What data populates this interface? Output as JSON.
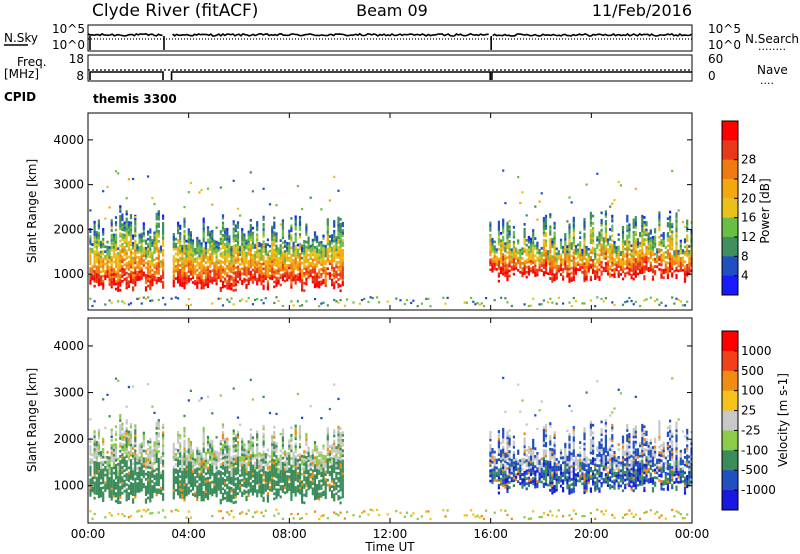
{
  "header": {
    "station": "Clyde River (fitACF)",
    "beam": "Beam 09",
    "date": "11/Feb/2016"
  },
  "strip_panels": {
    "sky": {
      "left_label": "N.Sky",
      "left_ticks": [
        "10^5",
        "10^0"
      ],
      "right_ticks": [
        "10^5",
        "10^0"
      ],
      "right_label": "N.Search",
      "legend_mark": "........"
    },
    "freq": {
      "left_label_1": "Freq.",
      "left_label_2": "[MHz]",
      "left_ticks": [
        "18",
        "8"
      ],
      "right_ticks": [
        "60",
        "0"
      ],
      "right_label": "Nave",
      "legend_mark": "....",
      "cpid_label": "CPID",
      "cpid_value": "themis 3300"
    }
  },
  "colors": {
    "power": [
      "#1a1aff",
      "#1f4fc2",
      "#3f8f5f",
      "#6abe45",
      "#e8c21a",
      "#f5a70f",
      "#f07a10",
      "#e8381a",
      "#ff0000"
    ],
    "velocity": [
      "#ff0000",
      "#f2401a",
      "#f08c12",
      "#f5c21c",
      "#c8c8c8",
      "#8ccc48",
      "#3a8c5a",
      "#2050c0",
      "#1818e0"
    ]
  },
  "chart_data": [
    {
      "type": "heatmap",
      "panel": "power",
      "ylabel": "Slant Range [km]",
      "yticks": [
        "1000",
        "2000",
        "3000",
        "4000"
      ],
      "ylim": [
        200,
        4600
      ],
      "colorbar_label": "Power [dB]",
      "colorbar_ticks": [
        "4",
        "8",
        "12",
        "16",
        "20",
        "24",
        "28"
      ],
      "grid": false
    },
    {
      "type": "heatmap",
      "panel": "velocity",
      "ylabel": "Slant Range [km]",
      "yticks": [
        "1000",
        "2000",
        "3000",
        "4000"
      ],
      "ylim": [
        200,
        4600
      ],
      "colorbar_label": "Velocity [m s-1]",
      "colorbar_ticks": [
        "1000",
        "500",
        "100",
        "25",
        "-25",
        "-100",
        "-500",
        "-1000"
      ],
      "grid": false
    }
  ],
  "x_axis": {
    "label": "Time UT",
    "ticks": [
      "00:00",
      "04:00",
      "08:00",
      "12:00",
      "16:00",
      "20:00",
      "00:00"
    ],
    "range_hours": [
      0,
      24
    ]
  }
}
